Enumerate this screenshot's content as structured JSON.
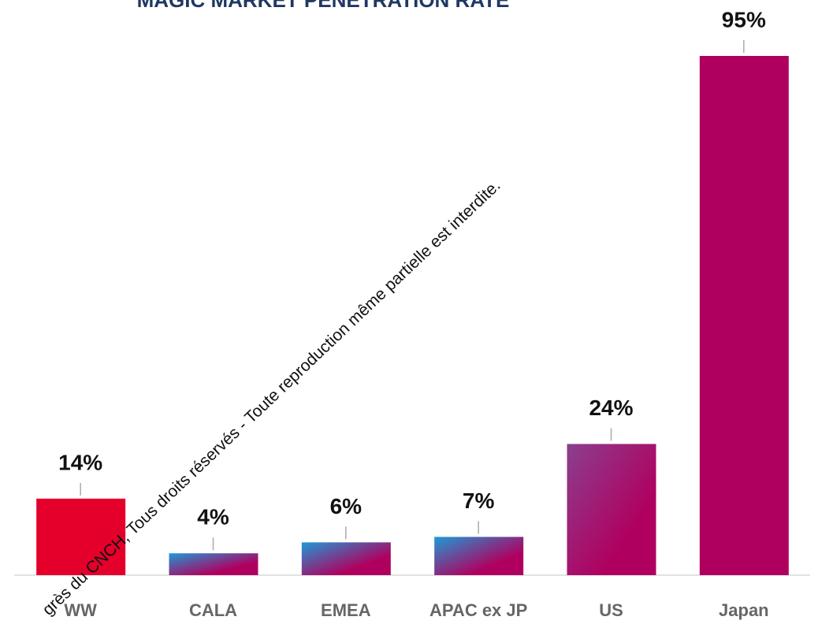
{
  "chart_data": {
    "type": "bar",
    "title": "MAGIC MARKET PENETRATION RATE",
    "watermark": "grès du CNCH, Tous droits réservés - Toute reproduction même partielle est interdite.",
    "categories": [
      "WW",
      "CALA",
      "EMEA",
      "APAC ex JP",
      "US",
      "Japan"
    ],
    "values": [
      14,
      4,
      6,
      7,
      24,
      95
    ],
    "value_labels": [
      "14%",
      "4%",
      "6%",
      "7%",
      "24%",
      "95%"
    ],
    "colors": [
      "#e4002b",
      "#1e9ad6",
      "#1e9ad6",
      "#1e9ad6",
      "#8b3f8f",
      "#b0005f"
    ],
    "ylim": [
      0,
      95
    ]
  }
}
